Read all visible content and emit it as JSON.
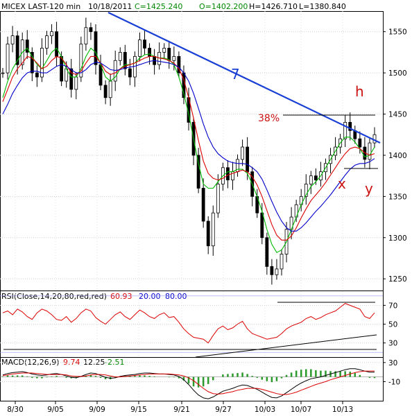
{
  "header": {
    "symbol": "MICEX LAST-120 min",
    "date": "10/18/2011",
    "close": "C=1425.240",
    "open": "O=1402.200",
    "high": "H=1426.710",
    "low": "L=1380.840"
  },
  "rsi_header": {
    "label": "RSI(Close,14,20,80,red,red)",
    "value": "60.93",
    "low_level": "20.00",
    "high_level": "80.00"
  },
  "macd_header": {
    "label": "MACD(12,26,9)",
    "macd": "9.74",
    "signal": "12.25",
    "hist": "-2.51"
  },
  "annotations": {
    "trend_number": "7",
    "fib": "38%",
    "h": "h",
    "x": "x",
    "y": "y"
  },
  "colors": {
    "price": "#000000",
    "ma_fast": "#00bb00",
    "ma_mid": "#dd0000",
    "ma_slow": "#0000cc",
    "trendline": "#1a3fd6",
    "rsi": "#dd0000",
    "macd_hist": "#2a9a2a",
    "annotation_red": "#cc1111"
  },
  "chart_data": [
    {
      "type": "candlestick",
      "title": "MICEX LAST-120 min",
      "y_ticks": [
        1250,
        1300,
        1350,
        1400,
        1450,
        1500,
        1550
      ],
      "ylim": [
        1235,
        1575
      ],
      "x_ticks": [
        "8/30",
        "9/05",
        "9/09",
        "9/15",
        "9/21",
        "9/27",
        "10/03",
        "10/07",
        "10/13"
      ],
      "series": [
        {
          "name": "close",
          "values": [
            1500,
            1535,
            1545,
            1510,
            1540,
            1525,
            1500,
            1495,
            1530,
            1545,
            1550,
            1520,
            1490,
            1505,
            1480,
            1495,
            1535,
            1555,
            1550,
            1510,
            1485,
            1470,
            1490,
            1515,
            1525,
            1505,
            1495,
            1520,
            1540,
            1530,
            1520,
            1510,
            1525,
            1530,
            1515,
            1520,
            1500,
            1470,
            1440,
            1400,
            1360,
            1320,
            1290,
            1330,
            1365,
            1385,
            1370,
            1380,
            1395,
            1410,
            1380,
            1350,
            1330,
            1300,
            1265,
            1255,
            1262,
            1280,
            1310,
            1325,
            1340,
            1350,
            1365,
            1375,
            1370,
            1380,
            1390,
            1400,
            1410,
            1420,
            1440,
            1430,
            1420,
            1410,
            1395,
            1415,
            1425
          ]
        },
        {
          "name": "ma_fast",
          "values": [
            1470,
            1490,
            1505,
            1515,
            1525,
            1530,
            1520,
            1510,
            1505,
            1515,
            1525,
            1530,
            1520,
            1505,
            1495,
            1495,
            1505,
            1520,
            1530,
            1525,
            1510,
            1495,
            1490,
            1495,
            1505,
            1510,
            1510,
            1512,
            1518,
            1522,
            1523,
            1520,
            1518,
            1518,
            1516,
            1510,
            1495,
            1475,
            1450,
            1420,
            1390,
            1365,
            1360,
            1360,
            1368,
            1375,
            1380,
            1380,
            1383,
            1383,
            1378,
            1365,
            1350,
            1332,
            1310,
            1292,
            1282,
            1285,
            1295,
            1310,
            1325,
            1340,
            1352,
            1362,
            1368,
            1375,
            1385,
            1395,
            1405,
            1415,
            1422,
            1422,
            1416,
            1408,
            1398,
            1400,
            1410
          ]
        },
        {
          "name": "ma_mid",
          "values": [
            1465,
            1480,
            1495,
            1505,
            1512,
            1520,
            1518,
            1512,
            1505,
            1508,
            1515,
            1520,
            1518,
            1510,
            1500,
            1498,
            1502,
            1512,
            1520,
            1520,
            1512,
            1502,
            1498,
            1500,
            1505,
            1508,
            1510,
            1512,
            1515,
            1518,
            1520,
            1520,
            1518,
            1517,
            1515,
            1512,
            1505,
            1492,
            1470,
            1445,
            1418,
            1393,
            1378,
            1372,
            1370,
            1372,
            1376,
            1378,
            1380,
            1382,
            1380,
            1374,
            1364,
            1350,
            1333,
            1316,
            1303,
            1297,
            1297,
            1302,
            1312,
            1324,
            1335,
            1345,
            1352,
            1359,
            1367,
            1376,
            1385,
            1394,
            1402,
            1408,
            1410,
            1408,
            1403,
            1400,
            1402
          ]
        },
        {
          "name": "ma_slow",
          "values": [
            1450,
            1462,
            1475,
            1485,
            1494,
            1500,
            1502,
            1502,
            1500,
            1500,
            1504,
            1508,
            1510,
            1508,
            1504,
            1500,
            1500,
            1504,
            1510,
            1513,
            1512,
            1508,
            1504,
            1503,
            1504,
            1506,
            1507,
            1508,
            1510,
            1512,
            1514,
            1515,
            1514,
            1513,
            1512,
            1510,
            1507,
            1500,
            1490,
            1475,
            1457,
            1438,
            1422,
            1410,
            1402,
            1397,
            1393,
            1391,
            1390,
            1390,
            1389,
            1385,
            1380,
            1371,
            1358,
            1344,
            1331,
            1320,
            1312,
            1308,
            1308,
            1312,
            1318,
            1325,
            1332,
            1338,
            1345,
            1352,
            1360,
            1368,
            1376,
            1383,
            1388,
            1390,
            1390,
            1392,
            1396
          ]
        }
      ],
      "annotations": [
        "7",
        "38%",
        "h",
        "x",
        "y"
      ]
    },
    {
      "type": "line",
      "title": "RSI(Close,14,20,80,red,red)",
      "y_ticks": [
        30,
        50,
        70
      ],
      "ylim": [
        15,
        85
      ],
      "series": [
        {
          "name": "RSI",
          "values": [
            62,
            64,
            60,
            66,
            63,
            58,
            55,
            62,
            66,
            64,
            60,
            55,
            54,
            58,
            52,
            56,
            62,
            66,
            64,
            57,
            53,
            50,
            55,
            60,
            63,
            58,
            55,
            60,
            65,
            62,
            58,
            56,
            60,
            62,
            57,
            58,
            52,
            45,
            40,
            36,
            35,
            34,
            30,
            38,
            45,
            48,
            44,
            46,
            50,
            53,
            45,
            40,
            38,
            36,
            34,
            35,
            36,
            40,
            45,
            48,
            50,
            52,
            56,
            58,
            55,
            57,
            60,
            62,
            64,
            68,
            72,
            70,
            68,
            66,
            58,
            56,
            62
          ]
        }
      ]
    },
    {
      "type": "line",
      "title": "MACD(12,26,9)",
      "y_ticks": [
        30,
        -10
      ],
      "ylim": [
        -50,
        40
      ],
      "series": [
        {
          "name": "MACD",
          "values": [
            4,
            7,
            9,
            10,
            11,
            9,
            6,
            4,
            3,
            4,
            6,
            7,
            5,
            2,
            -1,
            -2,
            1,
            5,
            8,
            7,
            3,
            -1,
            -3,
            -2,
            1,
            3,
            4,
            5,
            7,
            8,
            8,
            7,
            6,
            6,
            5,
            4,
            1,
            -6,
            -16,
            -28,
            -38,
            -44,
            -46,
            -42,
            -36,
            -30,
            -27,
            -24,
            -20,
            -17,
            -18,
            -22,
            -26,
            -32,
            -38,
            -43,
            -44,
            -40,
            -33,
            -26,
            -19,
            -13,
            -8,
            -4,
            -2,
            0,
            3,
            6,
            9,
            12,
            15,
            17,
            17,
            15,
            12,
            10,
            9.74
          ]
        },
        {
          "name": "Signal",
          "values": [
            3,
            4,
            6,
            7,
            8,
            8,
            8,
            7,
            6,
            5,
            5,
            5,
            5,
            4,
            2,
            1,
            1,
            2,
            4,
            5,
            5,
            4,
            2,
            0,
            0,
            1,
            2,
            3,
            4,
            5,
            6,
            6,
            6,
            6,
            6,
            5,
            4,
            2,
            -2,
            -8,
            -16,
            -24,
            -31,
            -35,
            -36,
            -35,
            -33,
            -31,
            -28,
            -26,
            -24,
            -24,
            -24,
            -26,
            -29,
            -32,
            -35,
            -37,
            -37,
            -35,
            -32,
            -28,
            -24,
            -20,
            -16,
            -13,
            -10,
            -6,
            -3,
            0,
            3,
            6,
            9,
            11,
            12,
            12.3,
            12.25
          ]
        },
        {
          "name": "Histogram",
          "values": [
            1,
            3,
            3,
            3,
            3,
            1,
            -2,
            -3,
            -3,
            -1,
            1,
            2,
            0,
            -2,
            -3,
            -3,
            0,
            3,
            4,
            2,
            -2,
            -5,
            -5,
            -2,
            1,
            2,
            2,
            2,
            3,
            3,
            2,
            1,
            0,
            0,
            -1,
            -1,
            -3,
            -8,
            -14,
            -20,
            -22,
            -20,
            -15,
            -7,
            0,
            5,
            6,
            7,
            8,
            9,
            6,
            2,
            -2,
            -6,
            -9,
            -11,
            -9,
            -3,
            4,
            9,
            13,
            15,
            16,
            16,
            14,
            13,
            13,
            12,
            12,
            12,
            12,
            11,
            8,
            4,
            0,
            -2,
            -2.51
          ]
        }
      ]
    }
  ]
}
